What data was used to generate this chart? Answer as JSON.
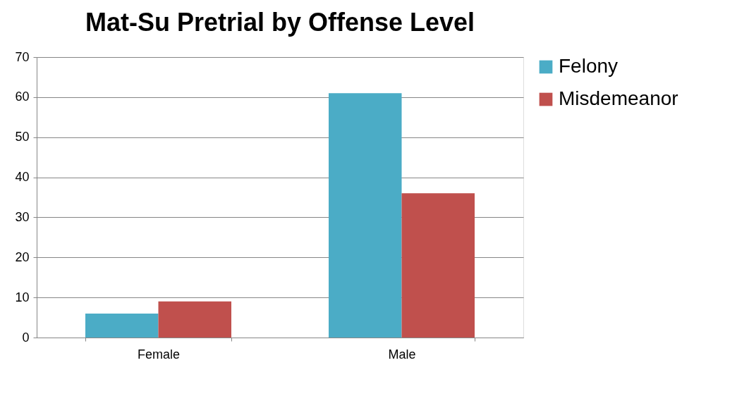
{
  "chart_data": {
    "type": "bar",
    "title": "Mat-Su Pretrial by Offense Level",
    "categories": [
      "Female",
      "Male"
    ],
    "series": [
      {
        "name": "Felony",
        "color": "#4bacc6",
        "values": [
          6,
          61
        ]
      },
      {
        "name": "Misdemeanor",
        "color": "#c0504d",
        "values": [
          9,
          36
        ]
      }
    ],
    "ylim": [
      0,
      70
    ],
    "yticks": [
      0,
      10,
      20,
      30,
      40,
      50,
      60,
      70
    ],
    "grid": "y",
    "legend": "right"
  }
}
